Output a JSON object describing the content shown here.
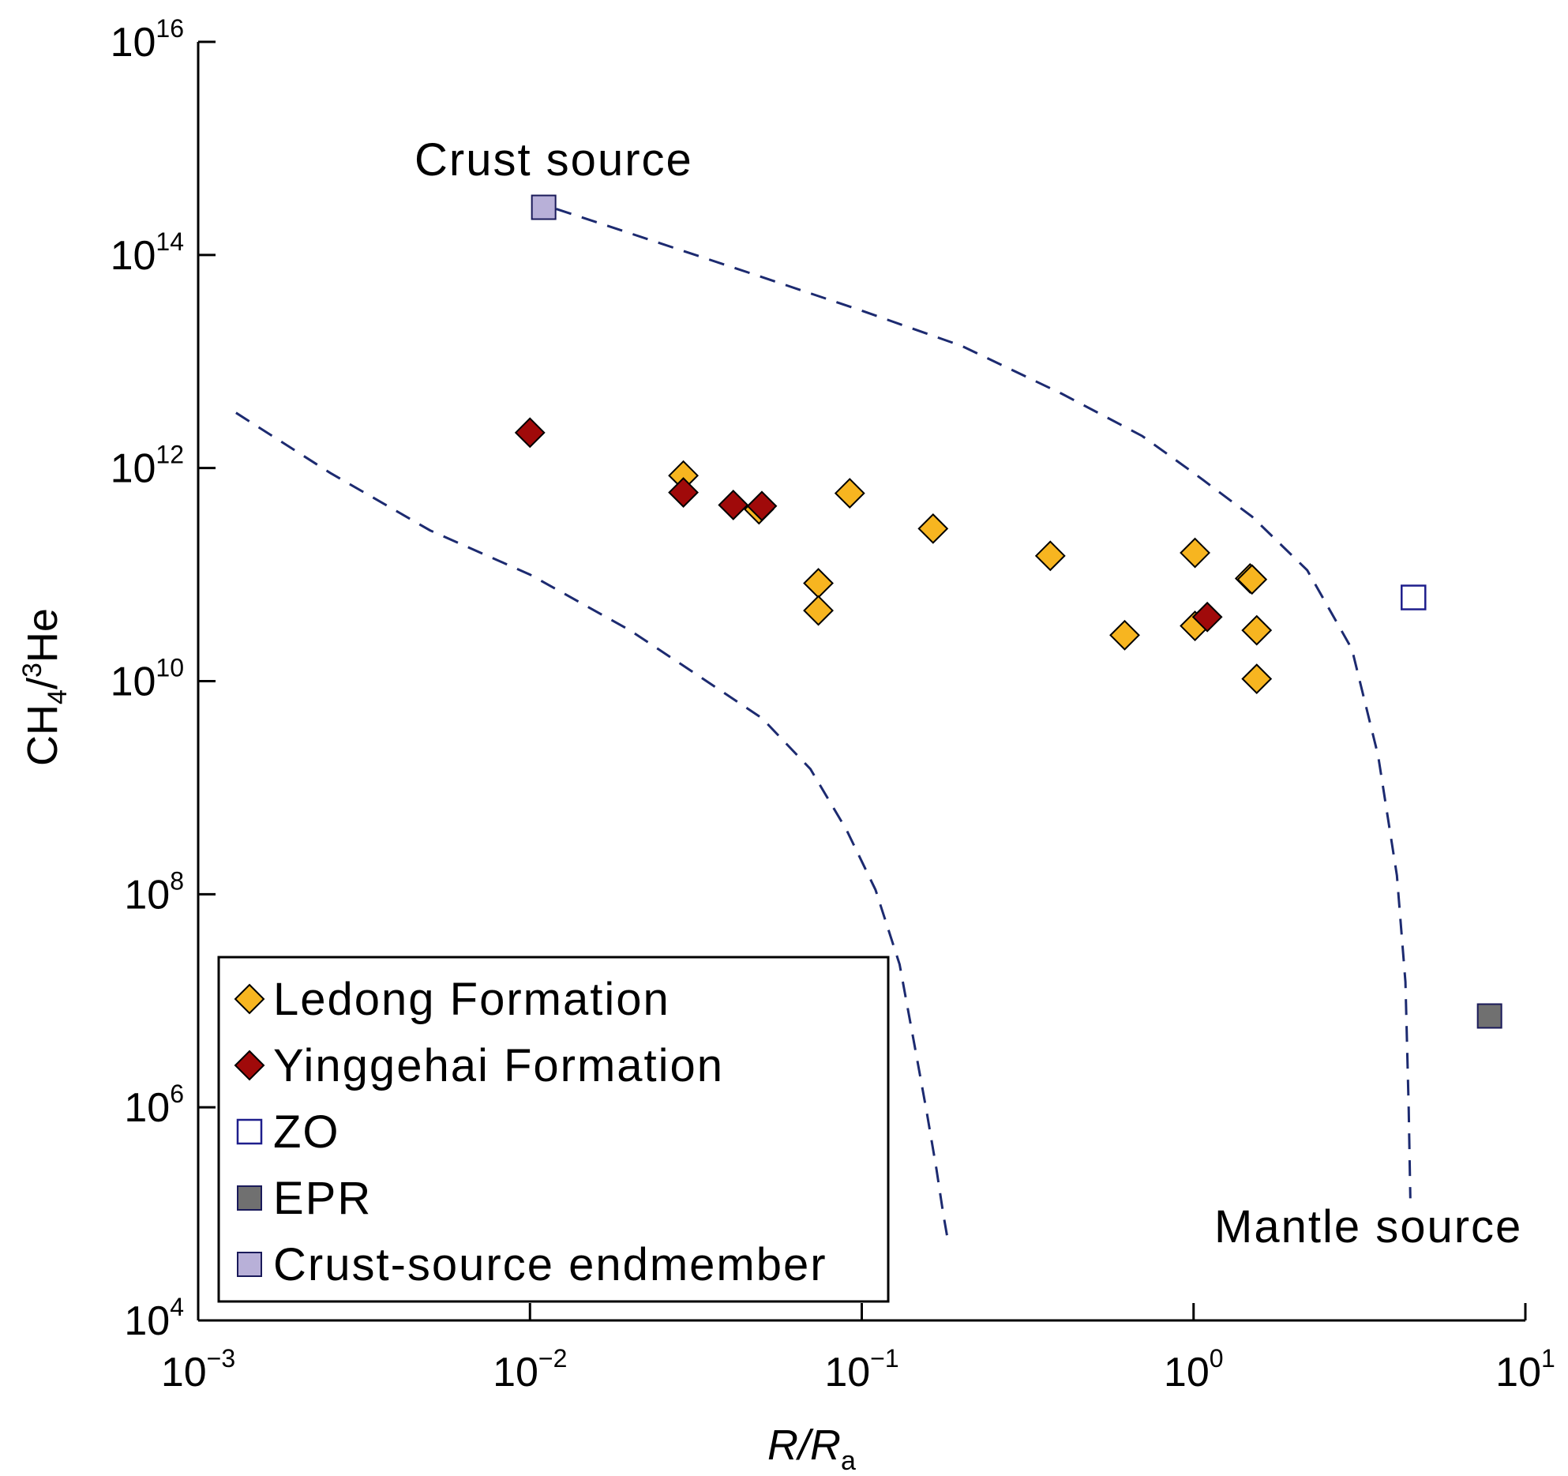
{
  "chart_data": {
    "type": "scatter",
    "x_scale": "log",
    "y_scale": "log",
    "xlim": [
      0.001,
      10
    ],
    "ylim": [
      10000,
      10000000000000000
    ],
    "grid": false,
    "x_ticks": [
      {
        "base": "10",
        "exp": "−3"
      },
      {
        "base": "10",
        "exp": "−2"
      },
      {
        "base": "10",
        "exp": "−1"
      },
      {
        "base": "10",
        "exp": "0"
      },
      {
        "base": "10",
        "exp": "1"
      }
    ],
    "y_ticks": [
      {
        "base": "10",
        "exp": "4"
      },
      {
        "base": "10",
        "exp": "6"
      },
      {
        "base": "10",
        "exp": "8"
      },
      {
        "base": "10",
        "exp": "10"
      },
      {
        "base": "10",
        "exp": "12"
      },
      {
        "base": "10",
        "exp": "14"
      },
      {
        "base": "10",
        "exp": "16"
      }
    ],
    "xlabel": {
      "main": "R/R",
      "sub": "a"
    },
    "ylabel": {
      "part1": "CH",
      "sub": "4",
      "part2": "/",
      "sup": "3",
      "part3": "He"
    },
    "annotations": {
      "crust": "Crust source",
      "mantle": "Mantle source"
    },
    "legend": {
      "position": "bottom-left"
    },
    "series": [
      {
        "name": "Ledong Formation",
        "marker": "diamond",
        "color": "#F7B520",
        "points": [
          {
            "x": 0.029,
            "y": 850000000000
          },
          {
            "x": 0.049,
            "y": 410000000000
          },
          {
            "x": 0.074,
            "y": 83000000000
          },
          {
            "x": 0.074,
            "y": 46000000000
          },
          {
            "x": 0.092,
            "y": 580000000000
          },
          {
            "x": 0.164,
            "y": 270000000000
          },
          {
            "x": 0.37,
            "y": 150000000000
          },
          {
            "x": 0.62,
            "y": 27000000000
          },
          {
            "x": 1.01,
            "y": 160000000000
          },
          {
            "x": 1.01,
            "y": 33000000000
          },
          {
            "x": 1.48,
            "y": 92000000000
          },
          {
            "x": 1.5,
            "y": 90000000000
          },
          {
            "x": 1.55,
            "y": 30000000000
          },
          {
            "x": 1.55,
            "y": 10500000000
          }
        ]
      },
      {
        "name": "Yinggehai Formation",
        "marker": "diamond",
        "color": "#A00A0A",
        "points": [
          {
            "x": 0.01,
            "y": 2150000000000
          },
          {
            "x": 0.029,
            "y": 590000000000
          },
          {
            "x": 0.041,
            "y": 450000000000
          },
          {
            "x": 0.05,
            "y": 440000000000
          },
          {
            "x": 1.1,
            "y": 40000000000
          }
        ]
      },
      {
        "name": "ZO",
        "marker": "square-open",
        "color": "#1E1E8C",
        "points": [
          {
            "x": 4.6,
            "y": 61000000000
          }
        ]
      },
      {
        "name": "EPR",
        "marker": "square",
        "color": "#707070",
        "points": [
          {
            "x": 7.8,
            "y": 7200000
          }
        ]
      },
      {
        "name": "Crust-source endmember",
        "marker": "square",
        "color": "#B8B0D8",
        "points": [
          {
            "x": 0.011,
            "y": 280000000000000
          }
        ]
      }
    ],
    "curves": [
      {
        "style": "dashed",
        "color": "#1C2A70",
        "points": [
          {
            "x": 0.0013,
            "y": 3300000000000
          },
          {
            "x": 0.0025,
            "y": 900000000000
          },
          {
            "x": 0.005,
            "y": 260000000000
          },
          {
            "x": 0.01,
            "y": 100000000000
          },
          {
            "x": 0.02,
            "y": 30000000000
          },
          {
            "x": 0.03,
            "y": 13000000000
          },
          {
            "x": 0.05,
            "y": 4500000000
          },
          {
            "x": 0.07,
            "y": 1500000000
          },
          {
            "x": 0.09,
            "y": 400000000
          },
          {
            "x": 0.11,
            "y": 110000000
          },
          {
            "x": 0.13,
            "y": 22000000
          },
          {
            "x": 0.145,
            "y": 3500000
          },
          {
            "x": 0.157,
            "y": 900000
          },
          {
            "x": 0.168,
            "y": 260000
          },
          {
            "x": 0.176,
            "y": 100000
          },
          {
            "x": 0.182,
            "y": 55000
          }
        ]
      },
      {
        "style": "dashed",
        "color": "#1C2A70",
        "points": [
          {
            "x": 0.012,
            "y": 270000000000000
          },
          {
            "x": 0.02,
            "y": 160000000000000
          },
          {
            "x": 0.05,
            "y": 62000000000000
          },
          {
            "x": 0.1,
            "y": 30000000000000
          },
          {
            "x": 0.2,
            "y": 14000000000000
          },
          {
            "x": 0.4,
            "y": 5000000000000
          },
          {
            "x": 0.7,
            "y": 2000000000000
          },
          {
            "x": 1.0,
            "y": 900000000000
          },
          {
            "x": 1.5,
            "y": 350000000000
          },
          {
            "x": 2.2,
            "y": 110000000000
          },
          {
            "x": 3.0,
            "y": 20000000000
          },
          {
            "x": 3.6,
            "y": 2000000000
          },
          {
            "x": 4.1,
            "y": 150000000
          },
          {
            "x": 4.35,
            "y": 15000000
          },
          {
            "x": 4.45,
            "y": 1000000
          },
          {
            "x": 4.5,
            "y": 140000
          }
        ]
      }
    ]
  }
}
